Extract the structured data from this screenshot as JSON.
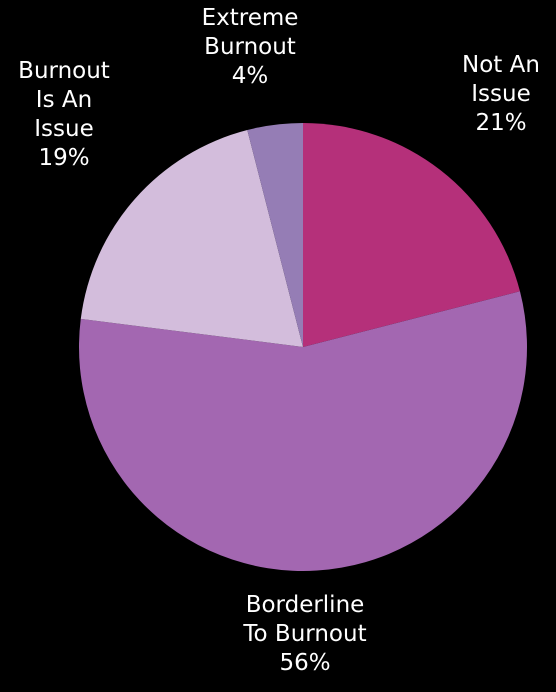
{
  "chart_data": {
    "type": "pie",
    "title": "",
    "slices": [
      {
        "name": "Not An Issue",
        "label_lines": [
          "Not An",
          "Issue"
        ],
        "value": 21,
        "value_label": "21%",
        "color": "#b5307a"
      },
      {
        "name": "Borderline To Burnout",
        "label_lines": [
          "Borderline",
          "To Burnout"
        ],
        "value": 56,
        "value_label": "56%",
        "color": "#a367b1"
      },
      {
        "name": "Burnout Is An Issue",
        "label_lines": [
          "Burnout",
          "Is An",
          "Issue"
        ],
        "value": 19,
        "value_label": "19%",
        "color": "#d3bddc"
      },
      {
        "name": "Extreme Burnout",
        "label_lines": [
          "Extreme",
          "Burnout"
        ],
        "value": 4,
        "value_label": "4%",
        "color": "#957db5"
      }
    ]
  }
}
